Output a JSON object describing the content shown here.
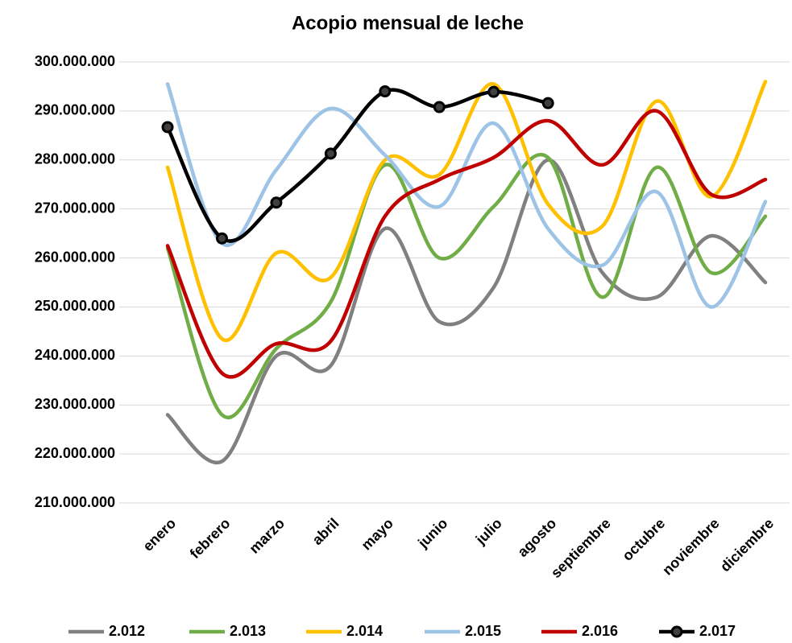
{
  "chart_data": {
    "type": "line",
    "title": "Acopio mensual de leche",
    "categories": [
      "enero",
      "febrero",
      "marzo",
      "abril",
      "mayo",
      "junio",
      "julio",
      "agosto",
      "septiembre",
      "octubre",
      "noviembre",
      "diciembre"
    ],
    "ylim": [
      210000000,
      300000000
    ],
    "yticks": [
      {
        "value": 210000000,
        "label": "210.000.000"
      },
      {
        "value": 220000000,
        "label": "220.000.000"
      },
      {
        "value": 230000000,
        "label": "230.000.000"
      },
      {
        "value": 240000000,
        "label": "240.000.000"
      },
      {
        "value": 250000000,
        "label": "250.000.000"
      },
      {
        "value": 260000000,
        "label": "260.000.000"
      },
      {
        "value": 270000000,
        "label": "270.000.000"
      },
      {
        "value": 280000000,
        "label": "280.000.000"
      },
      {
        "value": 290000000,
        "label": "290.000.000"
      },
      {
        "value": 300000000,
        "label": "300.000.000"
      }
    ],
    "grid": true,
    "smooth": true,
    "legend": "bottom",
    "series": [
      {
        "name": "2.012",
        "color": "#808080",
        "values": [
          228000000,
          218500000,
          240000000,
          238000000,
          266000000,
          247000000,
          254000000,
          280000000,
          257000000,
          252000000,
          264500000,
          255000000
        ]
      },
      {
        "name": "2.013",
        "color": "#70ad47",
        "values": [
          262000000,
          228000000,
          241500000,
          251000000,
          279000000,
          260000000,
          270500000,
          280500000,
          252000000,
          278500000,
          257000000,
          268500000
        ]
      },
      {
        "name": "2.014",
        "color": "#ffc000",
        "values": [
          278500000,
          243500000,
          261000000,
          256000000,
          280000000,
          277000000,
          295500000,
          271000000,
          266500000,
          292000000,
          272500000,
          296000000
        ]
      },
      {
        "name": "2.015",
        "color": "#9dc3e6",
        "values": [
          295500000,
          263000000,
          278000000,
          290500000,
          281000000,
          270500000,
          287500000,
          266000000,
          258500000,
          273500000,
          250000000,
          271500000
        ]
      },
      {
        "name": "2.016",
        "color": "#c00000",
        "values": [
          262500000,
          236500000,
          242500000,
          243000000,
          268500000,
          276000000,
          280500000,
          288000000,
          279000000,
          290000000,
          273000000,
          276000000
        ]
      },
      {
        "name": "2.017",
        "color": "#000000",
        "markers": true,
        "values": [
          286700000,
          264000000,
          271300000,
          281300000,
          294000000,
          290800000,
          293900000,
          291600000,
          null,
          null,
          null,
          null
        ]
      }
    ]
  }
}
